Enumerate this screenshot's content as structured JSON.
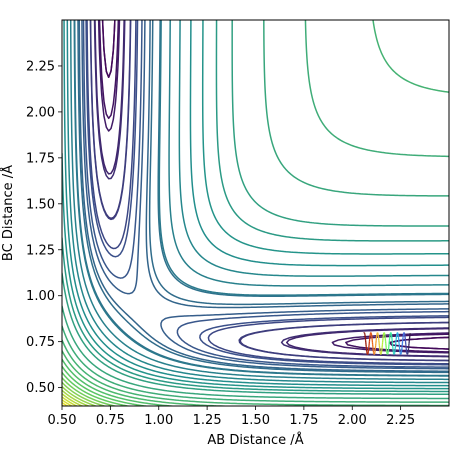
{
  "chart_data": {
    "type": "contour",
    "title": "",
    "xlabel": "AB Distance /Å",
    "ylabel": "BC Distance /Å",
    "xlim": [
      0.5,
      2.5
    ],
    "ylim": [
      0.4,
      2.5
    ],
    "xticks": [
      "0.50",
      "0.75",
      "1.00",
      "1.25",
      "1.50",
      "1.75",
      "2.00",
      "2.25"
    ],
    "yticks": [
      "0.50",
      "0.75",
      "1.00",
      "1.25",
      "1.50",
      "1.75",
      "2.00",
      "2.25"
    ],
    "grid": false,
    "legend": "none",
    "colormap": "viridis",
    "colormap_stops": [
      "#440154",
      "#3b528b",
      "#21918c",
      "#5ec962",
      "#fde725"
    ],
    "potential_surface": {
      "type": "LEPS",
      "saddle_approx": [
        0.95,
        0.77
      ],
      "channel_x_min": 0.74,
      "channel_y_min": 0.74
    },
    "contour_levels": {
      "inner_offsets": [
        0.02,
        0.05,
        0.1,
        0.17,
        0.25,
        0.35,
        0.5,
        0.7
      ],
      "upper_span": 6.1,
      "upper_count": 14,
      "wall_levels_extra": 16
    },
    "trajectory": {
      "colormap": "turbo",
      "x_range": [
        2.06,
        2.3
      ],
      "y_range": [
        0.68,
        0.8
      ],
      "oscillations": 7
    }
  }
}
